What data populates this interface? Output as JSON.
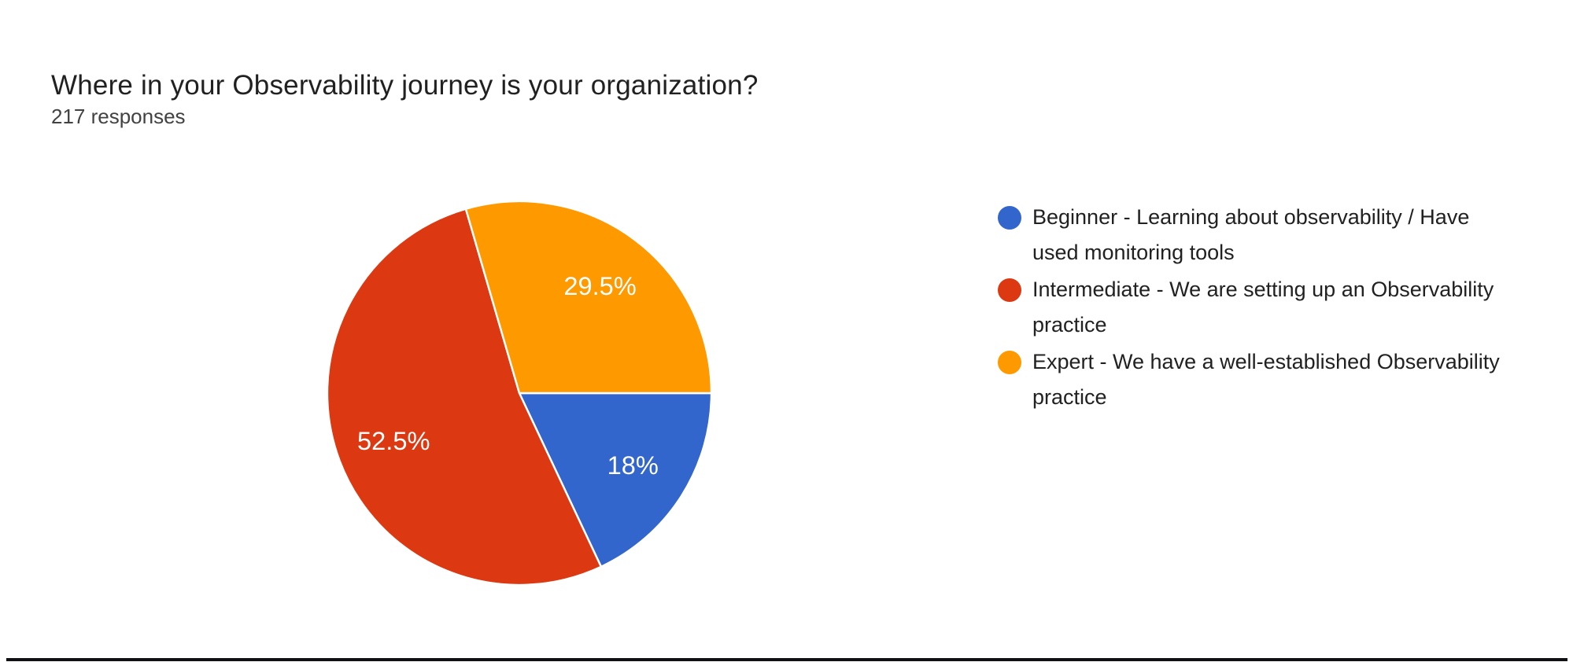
{
  "header": {
    "title": "Where in your Observability journey is your organization?",
    "response_count": "217 responses"
  },
  "chart_data": {
    "type": "pie",
    "title": "Where in your Observability journey is your organization?",
    "subtitle": "217 responses",
    "legend_position": "right",
    "direction": "clockwise",
    "start_angle_clockwise_from_top_deg": 90,
    "label_radius_fraction": 0.7,
    "slice_border_color": "#ffffff",
    "slices": [
      {
        "label": "Beginner - Learning about observability / Have used monitoring tools",
        "percent": 18,
        "display_percent": "18%",
        "color": "#3366CC"
      },
      {
        "label": "Intermediate - We are setting up an Observability practice",
        "percent": 52.5,
        "display_percent": "52.5%",
        "color": "#DC3912"
      },
      {
        "label": "Expert - We have a well-established Observability practice",
        "percent": 29.5,
        "display_percent": "29.5%",
        "color": "#FF9900"
      }
    ]
  }
}
